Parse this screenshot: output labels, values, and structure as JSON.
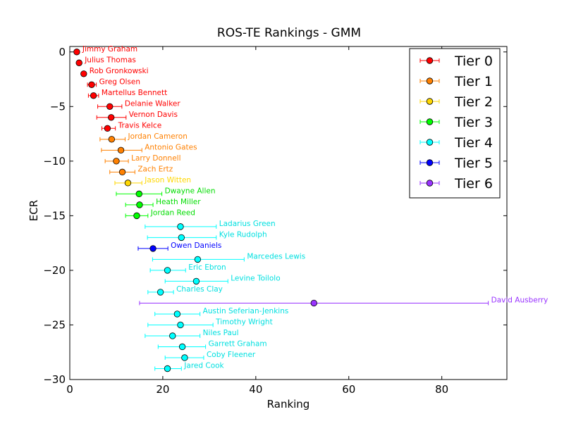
{
  "chart_data": {
    "type": "scatter",
    "title": "ROS-TE Rankings - GMM",
    "xlabel": "Ranking",
    "ylabel": "ECR",
    "xlim": [
      0,
      94
    ],
    "ylim": [
      -30,
      0.5
    ],
    "xticks": [
      {
        "value": 0,
        "label": "0"
      },
      {
        "value": 20,
        "label": "20"
      },
      {
        "value": 40,
        "label": "40"
      },
      {
        "value": 60,
        "label": "60"
      },
      {
        "value": 80,
        "label": "80"
      }
    ],
    "yticks": [
      {
        "value": 0,
        "label": "0"
      },
      {
        "value": -5,
        "label": "−5"
      },
      {
        "value": -10,
        "label": "−10"
      },
      {
        "value": -15,
        "label": "−15"
      },
      {
        "value": -20,
        "label": "−20"
      },
      {
        "value": -25,
        "label": "−25"
      },
      {
        "value": -30,
        "label": "−30"
      }
    ],
    "grid": false,
    "legend_position": "top-right",
    "error_bars": "horizontal",
    "tiers": [
      {
        "name": "Tier 0",
        "color": "#ff0000",
        "label_color": "#ff0000"
      },
      {
        "name": "Tier 1",
        "color": "#ff8000",
        "label_color": "#ff8000"
      },
      {
        "name": "Tier 2",
        "color": "#ffd700",
        "label_color": "#ffd700"
      },
      {
        "name": "Tier 3",
        "color": "#00ff00",
        "label_color": "#00dd00"
      },
      {
        "name": "Tier 4",
        "color": "#00ffff",
        "label_color": "#00e0e0"
      },
      {
        "name": "Tier 5",
        "color": "#0000ff",
        "label_color": "#0000ff"
      },
      {
        "name": "Tier 6",
        "color": "#9933ff",
        "label_color": "#9933ff"
      }
    ],
    "players": [
      {
        "name": "Jimmy Graham",
        "tier": 0,
        "ecr": 0,
        "rank": 1.5,
        "low": 1.5,
        "high": 1.5
      },
      {
        "name": "Julius Thomas",
        "tier": 0,
        "ecr": -1,
        "rank": 2,
        "low": 2,
        "high": 2
      },
      {
        "name": "Rob Gronkowski",
        "tier": 0,
        "ecr": -2,
        "rank": 3,
        "low": 3,
        "high": 3
      },
      {
        "name": "Greg Olsen",
        "tier": 0,
        "ecr": -3,
        "rank": 4.7,
        "low": 3.8,
        "high": 5.7
      },
      {
        "name": "Martellus Bennett",
        "tier": 0,
        "ecr": -4,
        "rank": 5.1,
        "low": 4,
        "high": 6.2
      },
      {
        "name": "Delanie Walker",
        "tier": 0,
        "ecr": -5,
        "rank": 8.6,
        "low": 6,
        "high": 11.2
      },
      {
        "name": "Vernon Davis",
        "tier": 0,
        "ecr": -6,
        "rank": 8.9,
        "low": 5.8,
        "high": 12.1
      },
      {
        "name": "Travis Kelce",
        "tier": 0,
        "ecr": -7,
        "rank": 8.1,
        "low": 6.9,
        "high": 9.8
      },
      {
        "name": "Jordan Cameron",
        "tier": 1,
        "ecr": -8,
        "rank": 9,
        "low": 6.5,
        "high": 11.9
      },
      {
        "name": "Antonio Gates",
        "tier": 1,
        "ecr": -9,
        "rank": 11,
        "low": 6.8,
        "high": 15.5
      },
      {
        "name": "Larry Donnell",
        "tier": 1,
        "ecr": -10,
        "rank": 10,
        "low": 7.6,
        "high": 12.6
      },
      {
        "name": "Zach Ertz",
        "tier": 1,
        "ecr": -11,
        "rank": 11.3,
        "low": 8.6,
        "high": 14
      },
      {
        "name": "Jason Witten",
        "tier": 2,
        "ecr": -12,
        "rank": 12.5,
        "low": 9.7,
        "high": 15.5
      },
      {
        "name": "Dwayne Allen",
        "tier": 3,
        "ecr": -13,
        "rank": 14.9,
        "low": 10,
        "high": 19.8
      },
      {
        "name": "Heath Miller",
        "tier": 3,
        "ecr": -14,
        "rank": 15,
        "low": 12,
        "high": 17.9
      },
      {
        "name": "Jordan Reed",
        "tier": 3,
        "ecr": -15,
        "rank": 14.4,
        "low": 12,
        "high": 16.8
      },
      {
        "name": "Ladarius Green",
        "tier": 4,
        "ecr": -16,
        "rank": 23.8,
        "low": 16.2,
        "high": 31.5
      },
      {
        "name": "Kyle Rudolph",
        "tier": 4,
        "ecr": -17,
        "rank": 24,
        "low": 16.7,
        "high": 31.5
      },
      {
        "name": "Owen Daniels",
        "tier": 5,
        "ecr": -18,
        "rank": 17.9,
        "low": 14.7,
        "high": 21.1
      },
      {
        "name": "Marcedes Lewis",
        "tier": 4,
        "ecr": -19,
        "rank": 27.5,
        "low": 17.8,
        "high": 37.5
      },
      {
        "name": "Eric Ebron",
        "tier": 4,
        "ecr": -20,
        "rank": 21,
        "low": 17.3,
        "high": 24.9
      },
      {
        "name": "Levine Toilolo",
        "tier": 4,
        "ecr": -21,
        "rank": 27.2,
        "low": 20.5,
        "high": 34
      },
      {
        "name": "Charles Clay",
        "tier": 4,
        "ecr": -22,
        "rank": 19.5,
        "low": 16.8,
        "high": 22.3
      },
      {
        "name": "David Ausberry",
        "tier": 6,
        "ecr": -23,
        "rank": 52.5,
        "low": 15,
        "high": 90
      },
      {
        "name": "Austin Seferian-Jenkins",
        "tier": 4,
        "ecr": -24,
        "rank": 23.1,
        "low": 18.3,
        "high": 28
      },
      {
        "name": "Timothy Wright",
        "tier": 4,
        "ecr": -25,
        "rank": 23.8,
        "low": 16.8,
        "high": 30.8
      },
      {
        "name": "Niles Paul",
        "tier": 4,
        "ecr": -26,
        "rank": 22.1,
        "low": 16.2,
        "high": 28
      },
      {
        "name": "Garrett Graham",
        "tier": 4,
        "ecr": -27,
        "rank": 24.2,
        "low": 19,
        "high": 29.2
      },
      {
        "name": "Coby Fleener",
        "tier": 4,
        "ecr": -28,
        "rank": 24.7,
        "low": 20.5,
        "high": 28.8
      },
      {
        "name": "Jared Cook",
        "tier": 4,
        "ecr": -29,
        "rank": 21,
        "low": 18.3,
        "high": 24
      }
    ]
  }
}
